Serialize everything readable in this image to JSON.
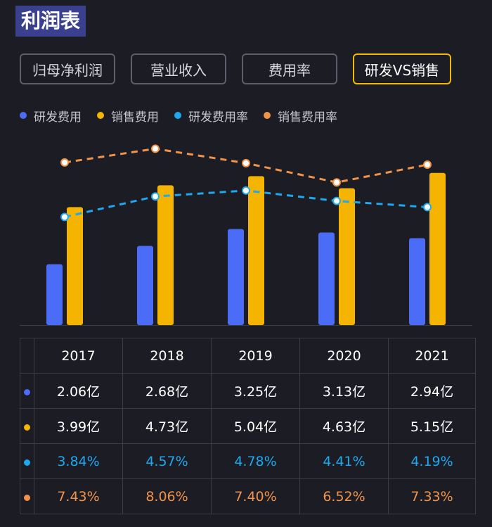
{
  "page": {
    "title": "利润表"
  },
  "tabs": [
    {
      "label": "归母净利润",
      "active": false
    },
    {
      "label": "营业收入",
      "active": false
    },
    {
      "label": "费用率",
      "active": false
    },
    {
      "label": "研发VS销售",
      "active": true
    }
  ],
  "colors": {
    "rd": "#4a6cf7",
    "sales": "#f5b400",
    "rd_rate": "#1ea8f0",
    "sales_rate": "#f0924a"
  },
  "chart_data": {
    "type": "bar",
    "categories": [
      "2017",
      "2018",
      "2019",
      "2020",
      "2021"
    ],
    "series": [
      {
        "name": "研发费用",
        "kind": "bar",
        "unit": "亿",
        "values": [
          2.06,
          2.68,
          3.25,
          3.13,
          2.94
        ],
        "display": [
          "2.06亿",
          "2.68亿",
          "3.25亿",
          "3.13亿",
          "2.94亿"
        ]
      },
      {
        "name": "销售费用",
        "kind": "bar",
        "unit": "亿",
        "values": [
          3.99,
          4.73,
          5.04,
          4.63,
          5.15
        ],
        "display": [
          "3.99亿",
          "4.73亿",
          "5.04亿",
          "4.63亿",
          "5.15亿"
        ]
      },
      {
        "name": "研发费用率",
        "kind": "line",
        "unit": "%",
        "values": [
          3.84,
          4.57,
          4.78,
          4.41,
          4.19
        ],
        "display": [
          "3.84%",
          "4.57%",
          "4.78%",
          "4.41%",
          "4.19%"
        ]
      },
      {
        "name": "销售费用率",
        "kind": "line",
        "unit": "%",
        "values": [
          7.43,
          8.06,
          7.4,
          6.52,
          7.33
        ],
        "display": [
          "7.43%",
          "8.06%",
          "7.40%",
          "6.52%",
          "7.33%"
        ]
      }
    ],
    "xlabel": "",
    "ylabel": "",
    "grid": false,
    "legend": "top-left"
  }
}
